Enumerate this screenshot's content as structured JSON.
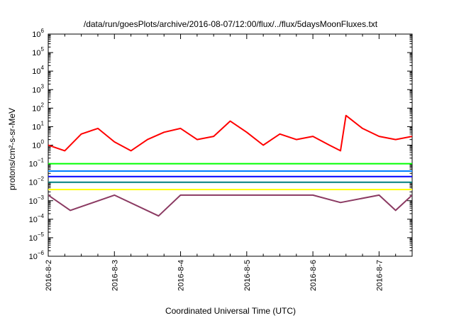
{
  "chart_data": {
    "type": "line",
    "title": "/data/run/goesPlots/archive/2016-08-07/12:00/flux/../flux/5daysMoonFluxes.txt",
    "xlabel": "Coordinated Universal Time (UTC)",
    "ylabel": "protons/cm²-s-sr-MeV",
    "xlim": [
      "2016-08-02",
      "2016-08-07 12:00"
    ],
    "ylim": [
      1e-06,
      1000000.0
    ],
    "yscale": "log",
    "x_tick_labels": [
      "2016-8-2",
      "2016-8-3",
      "2016-8-4",
      "2016-8-5",
      "2016-8-6",
      "2016-8-7"
    ],
    "y_tick_exponents": [
      -6,
      -5,
      -4,
      -3,
      -2,
      -1,
      0,
      1,
      2,
      3,
      4,
      5,
      6
    ],
    "grid": false,
    "legend": "none",
    "series": [
      {
        "color": "#ff0000",
        "x": [
          "2016-08-02 00:00",
          "2016-08-02 06:00",
          "2016-08-02 12:00",
          "2016-08-02 18:00",
          "2016-08-03 00:00",
          "2016-08-03 06:00",
          "2016-08-03 12:00",
          "2016-08-03 18:00",
          "2016-08-04 00:00",
          "2016-08-04 06:00",
          "2016-08-04 12:00",
          "2016-08-04 18:00",
          "2016-08-05 00:00",
          "2016-08-05 06:00",
          "2016-08-05 12:00",
          "2016-08-05 18:00",
          "2016-08-06 00:00",
          "2016-08-06 06:00",
          "2016-08-06 10:00",
          "2016-08-06 12:00",
          "2016-08-06 18:00",
          "2016-08-07 00:00",
          "2016-08-07 06:00",
          "2016-08-07 12:00"
        ],
        "y": [
          1.0,
          0.5,
          4.0,
          8.0,
          1.5,
          0.5,
          2.0,
          5.0,
          8.0,
          2.0,
          3.0,
          20.0,
          5.0,
          1.0,
          4.0,
          2.0,
          3.0,
          1.0,
          0.5,
          40.0,
          8.0,
          3.0,
          2.0,
          3.0
        ]
      },
      {
        "color": "#00ff00",
        "x": [
          "2016-08-02 00:00",
          "2016-08-03 00:00",
          "2016-08-04 00:00",
          "2016-08-05 00:00",
          "2016-08-06 00:00",
          "2016-08-07 00:00",
          "2016-08-07 12:00"
        ],
        "y": [
          0.1,
          0.1,
          0.1,
          0.1,
          0.1,
          0.1,
          0.1
        ]
      },
      {
        "color": "#007fff",
        "x": [
          "2016-08-02 00:00",
          "2016-08-03 00:00",
          "2016-08-04 00:00",
          "2016-08-05 00:00",
          "2016-08-06 00:00",
          "2016-08-07 00:00",
          "2016-08-07 12:00"
        ],
        "y": [
          0.04,
          0.04,
          0.04,
          0.04,
          0.04,
          0.04,
          0.04
        ]
      },
      {
        "color": "#0000ff",
        "x": [
          "2016-08-02 00:00",
          "2016-08-03 00:00",
          "2016-08-04 00:00",
          "2016-08-05 00:00",
          "2016-08-06 00:00",
          "2016-08-07 00:00",
          "2016-08-07 12:00"
        ],
        "y": [
          0.02,
          0.02,
          0.02,
          0.02,
          0.02,
          0.02,
          0.02
        ]
      },
      {
        "color": "#008080",
        "x": [
          "2016-08-02 00:00",
          "2016-08-03 00:00",
          "2016-08-04 00:00",
          "2016-08-05 00:00",
          "2016-08-06 00:00",
          "2016-08-07 00:00",
          "2016-08-07 12:00"
        ],
        "y": [
          0.01,
          0.01,
          0.01,
          0.01,
          0.01,
          0.01,
          0.01
        ]
      },
      {
        "color": "#ffff00",
        "x": [
          "2016-08-02 00:00",
          "2016-08-03 00:00",
          "2016-08-04 00:00",
          "2016-08-05 00:00",
          "2016-08-06 00:00",
          "2016-08-07 00:00",
          "2016-08-07 12:00"
        ],
        "y": [
          0.004,
          0.004,
          0.004,
          0.004,
          0.004,
          0.004,
          0.004
        ]
      },
      {
        "color": "#8b3a62",
        "x": [
          "2016-08-02 00:00",
          "2016-08-02 08:00",
          "2016-08-03 00:00",
          "2016-08-03 16:00",
          "2016-08-04 00:00",
          "2016-08-05 00:00",
          "2016-08-06 00:00",
          "2016-08-06 10:00",
          "2016-08-07 00:00",
          "2016-08-07 06:00",
          "2016-08-07 12:00"
        ],
        "y": [
          0.002,
          0.0003,
          0.002,
          0.00015,
          0.002,
          0.002,
          0.002,
          0.0008,
          0.002,
          0.0003,
          0.002
        ]
      }
    ]
  }
}
